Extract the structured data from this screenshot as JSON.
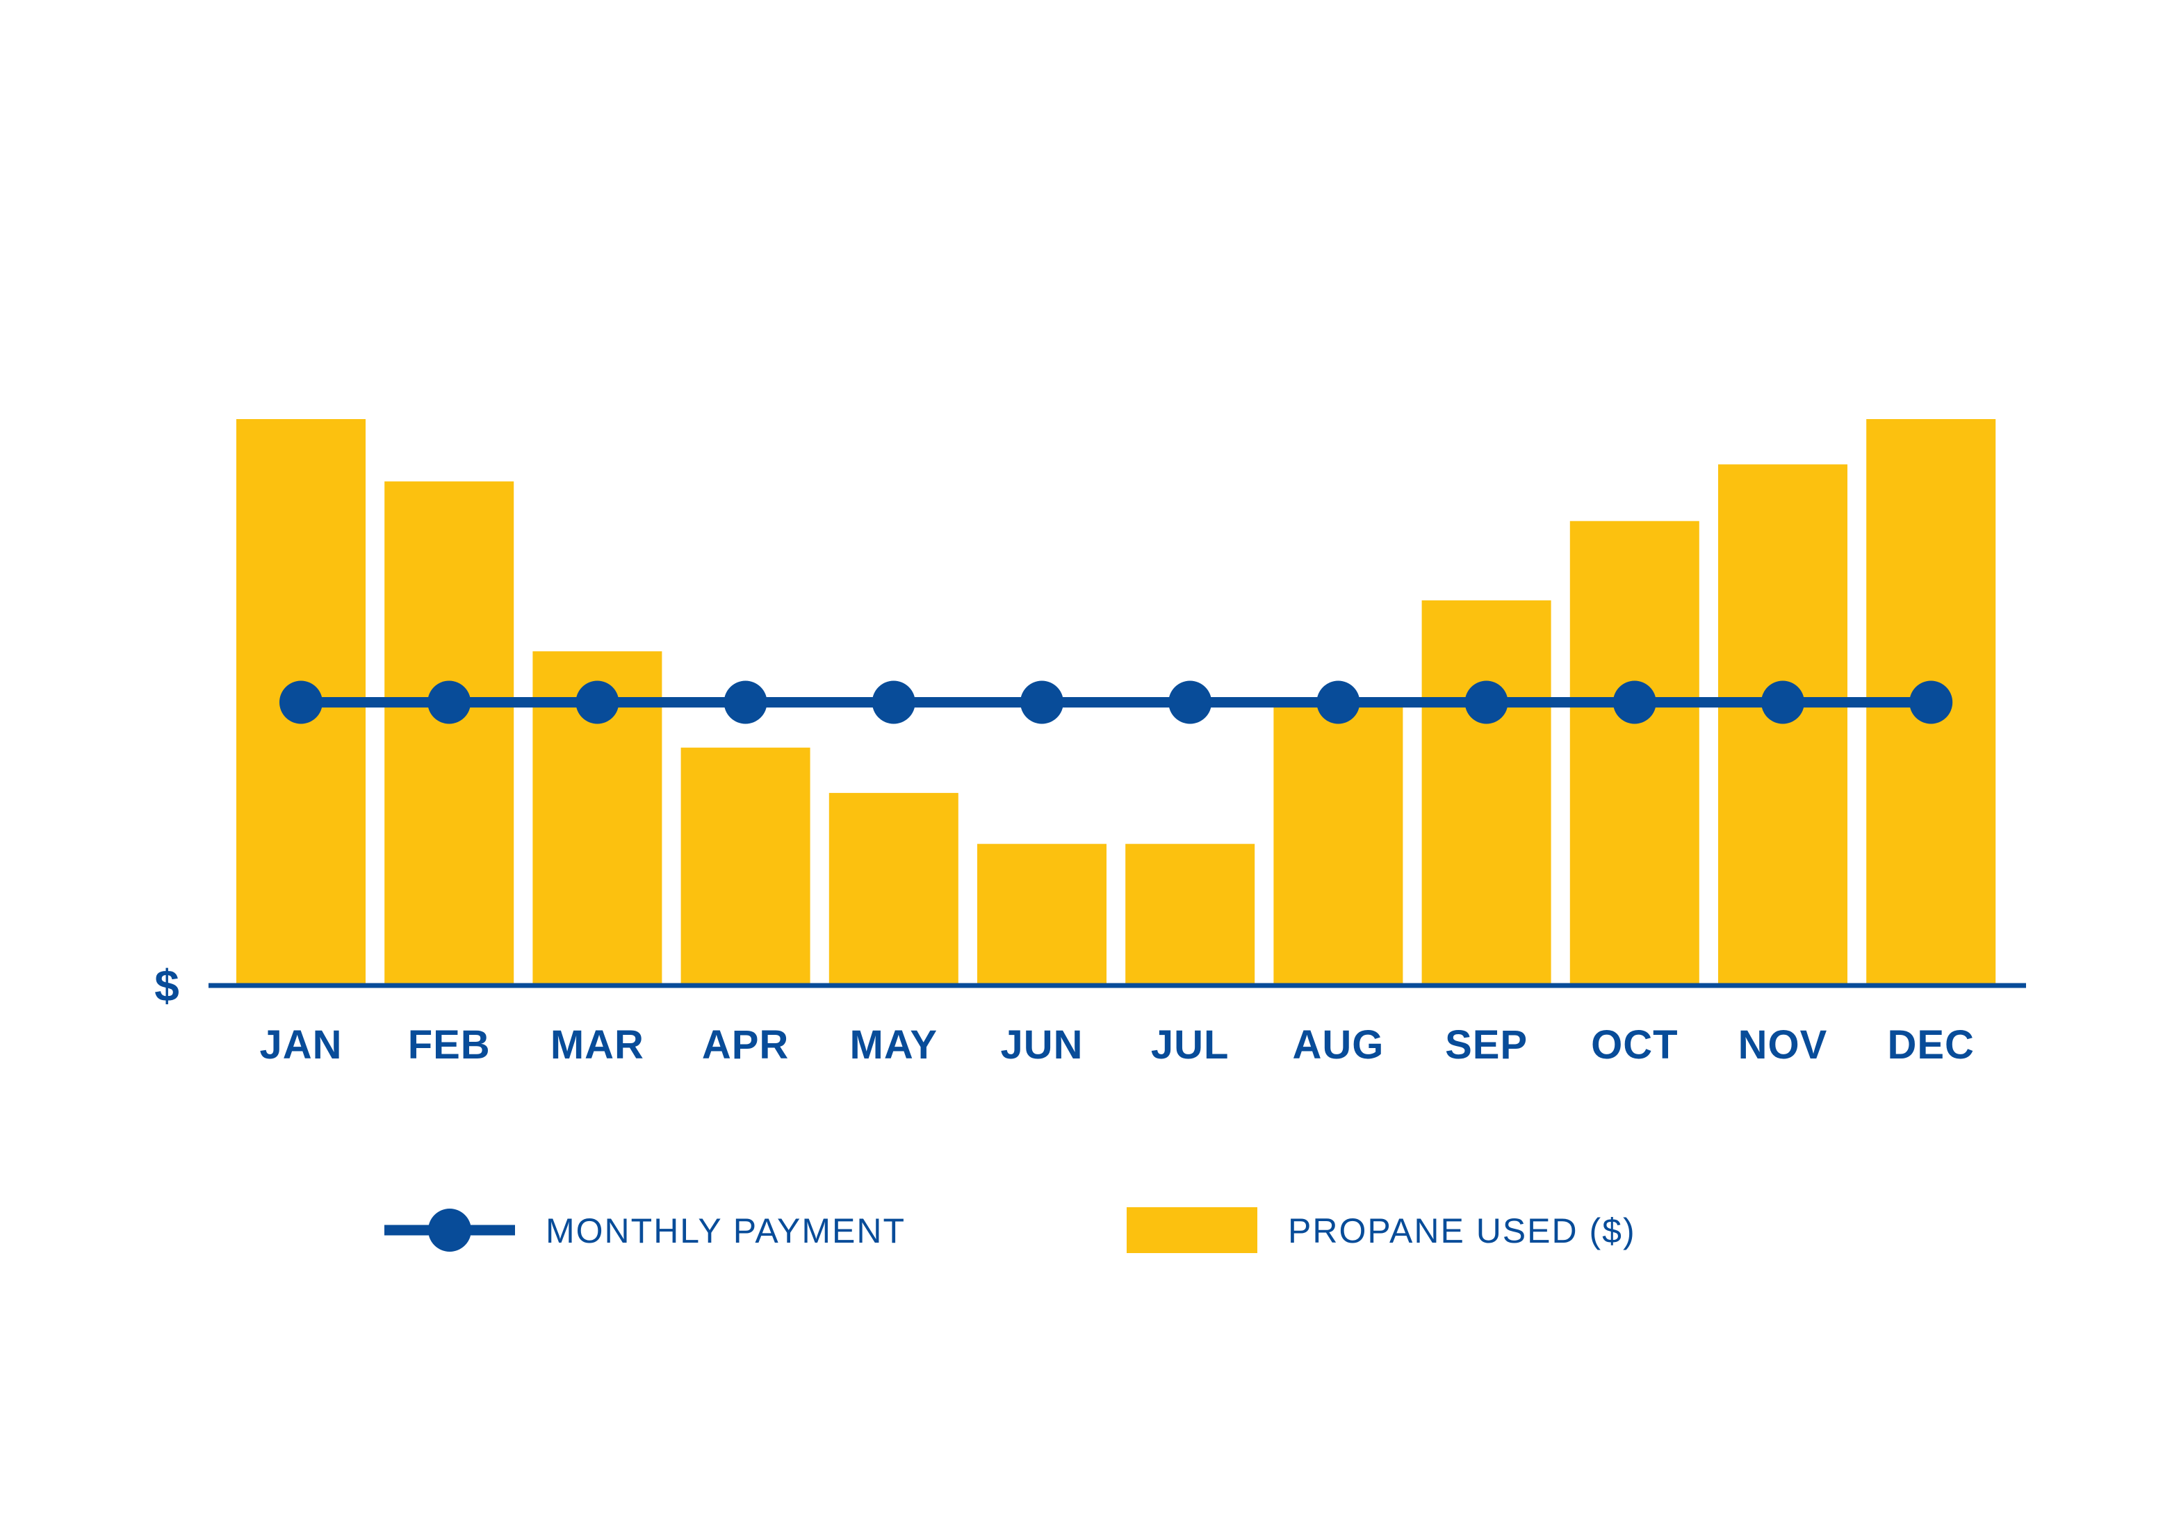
{
  "chart_data": {
    "type": "bar",
    "title": "",
    "xlabel": "",
    "ylabel": "$",
    "ylim": [
      0,
      100
    ],
    "categories": [
      "JAN",
      "FEB",
      "MAR",
      "APR",
      "MAY",
      "JUN",
      "JUL",
      "AUG",
      "SEP",
      "OCT",
      "NOV",
      "DEC"
    ],
    "series": [
      {
        "name": "PROPANE USED ($)",
        "kind": "bar",
        "values": [
          100,
          89,
          59,
          42,
          34,
          25,
          25,
          50,
          68,
          82,
          92,
          100
        ]
      },
      {
        "name": "MONTHLY PAYMENT",
        "kind": "line",
        "values": [
          50,
          50,
          50,
          50,
          50,
          50,
          50,
          50,
          50,
          50,
          50,
          50
        ]
      }
    ],
    "legend": {
      "position": "bottom",
      "line_label": "MONTHLY PAYMENT",
      "bar_label": "PROPANE USED ($)"
    },
    "grid": false
  },
  "colors": {
    "bar": "#FCC10F",
    "line": "#084C99",
    "axis": "#084C99",
    "text": "#084C99"
  }
}
